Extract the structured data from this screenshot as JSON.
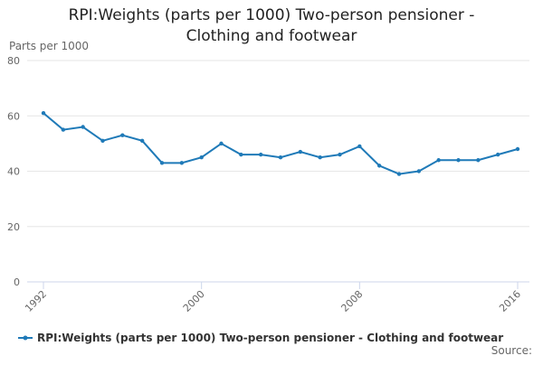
{
  "chart_data": {
    "type": "line",
    "title": "RPI:Weights (parts per 1000) Two-person pensioner - Clothing and footwear",
    "y_label": "Parts per 1000",
    "source": "Source:",
    "x": [
      1992,
      1993,
      1994,
      1995,
      1996,
      1997,
      1998,
      1999,
      2000,
      2001,
      2002,
      2003,
      2004,
      2005,
      2006,
      2007,
      2008,
      2009,
      2010,
      2011,
      2012,
      2013,
      2014,
      2015,
      2016
    ],
    "series": [
      {
        "name": "RPI:Weights (parts per 1000) Two-person pensioner - Clothing and footwear",
        "color": "#1f7ab8",
        "values": [
          61,
          55,
          56,
          51,
          53,
          51,
          43,
          43,
          45,
          50,
          46,
          46,
          45,
          47,
          45,
          46,
          49,
          42,
          39,
          40,
          44,
          44,
          44,
          46,
          48
        ]
      }
    ],
    "xlim": [
      1992,
      2016
    ],
    "xticks": [
      1992,
      2000,
      2008,
      2016
    ],
    "ylim": [
      0,
      80
    ],
    "yticks": [
      0,
      20,
      40,
      60,
      80
    ],
    "grid": true
  }
}
